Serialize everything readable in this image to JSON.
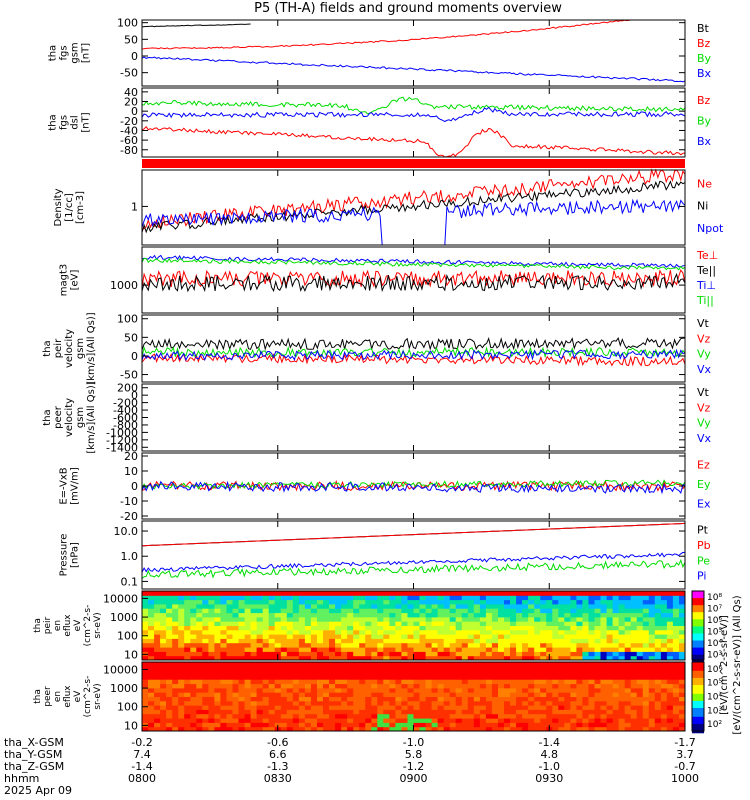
{
  "title": "P5 (TH-A) fields and ground moments overview",
  "colors": {
    "black": "#000000",
    "red": "#ff0000",
    "green": "#00dd00",
    "blue": "#0000ff"
  },
  "chart_data": {
    "type": "line",
    "title": "P5 (TH-A) fields and ground moments overview",
    "time_axis": {
      "xlim": [
        "08:00",
        "10:00"
      ],
      "ticks": [
        "0800",
        "0830",
        "0900",
        "0930",
        "1000"
      ],
      "major_ticks_min": [
        0,
        30,
        60,
        90,
        120
      ],
      "orbit_rows": [
        {
          "label": "tha_X-GSM",
          "values": [
            "-0.2",
            "-0.6",
            "-1.0",
            "-1.4",
            "-1.7"
          ]
        },
        {
          "label": "tha_Y-GSM",
          "values": [
            "7.4",
            "6.6",
            "5.8",
            "4.8",
            "3.7"
          ]
        },
        {
          "label": "tha_Z-GSM",
          "values": [
            "-1.4",
            "-1.3",
            "-1.2",
            "-1.0",
            "-0.7"
          ]
        },
        {
          "label": "hhmm",
          "values": [
            "0800",
            "0830",
            "0900",
            "0930",
            "1000"
          ]
        }
      ],
      "date_label": "2025 Apr 09"
    },
    "panels": [
      {
        "id": "fgs",
        "ylabel": [
          "tha",
          "fgs",
          "gsm",
          "[nT]"
        ],
        "scale": "linear",
        "ylim": [
          -90,
          108
        ],
        "ticks": [
          "100",
          "50",
          "0",
          "-50"
        ],
        "tick_values": [
          100,
          50,
          0,
          -50
        ],
        "series": [
          {
            "name": "Bt",
            "color": "black",
            "start": 88,
            "end": 125,
            "noise": 1,
            "hide_after": 0.2
          },
          {
            "name": "Bz",
            "color": "red",
            "start": 23,
            "end": 130,
            "noise": 2,
            "kind": "rising"
          },
          {
            "name": "By",
            "color": "green",
            "start": null,
            "end": null
          },
          {
            "name": "Bx",
            "color": "blue",
            "start": -4,
            "end": -75,
            "noise": 3
          }
        ]
      },
      {
        "id": "fgs-dsl",
        "ylabel": [
          "tha",
          "fgs",
          "dsl",
          "[nT]"
        ],
        "scale": "linear",
        "ylim": [
          -95,
          48
        ],
        "ticks": [
          "40",
          "20",
          "0",
          "-20",
          "-40",
          "-60",
          "-80"
        ],
        "tick_values": [
          40,
          20,
          0,
          -20,
          -40,
          -60,
          -80
        ],
        "series": [
          {
            "name": "Bz",
            "color": "red",
            "start": -35,
            "end": -88,
            "noise": 4,
            "bump": [
              0.6,
              30
            ]
          },
          {
            "name": "By",
            "color": "green",
            "start": 18,
            "end": 3,
            "noise": 5,
            "bump": [
              0.45,
              15
            ]
          },
          {
            "name": "Bx",
            "color": "blue",
            "start": -8,
            "end": -6,
            "noise": 5,
            "bump": [
              0.6,
              10
            ]
          }
        ]
      },
      {
        "id": "density",
        "ylabel": [
          "Density",
          "[1/cc]",
          "[cm-3]"
        ],
        "scale": "log",
        "ylim": [
          0.15,
          6
        ],
        "ticks": [
          "1"
        ],
        "tick_values": [
          1
        ],
        "series": [
          {
            "name": "Ne",
            "color": "red",
            "start": 0.45,
            "end": 5,
            "noise": 0.15
          },
          {
            "name": "Ni",
            "color": "black",
            "start": 0.35,
            "end": 3,
            "noise": 0.1
          },
          {
            "name": "Npot",
            "color": "blue",
            "start": 0.5,
            "end": 1.1,
            "noise": 0.15,
            "dip": [
              0.5,
              0.1
            ]
          }
        ]
      },
      {
        "id": "temp",
        "ylabel": [
          "magt3",
          "[eV]"
        ],
        "scale": "log",
        "ylim": [
          200,
          9000
        ],
        "ticks": [
          "1000"
        ],
        "tick_values": [
          1000
        ],
        "series": [
          {
            "name": "Te⊥",
            "color": "red",
            "start": 1400,
            "end": 1500,
            "noise": 0.2
          },
          {
            "name": "Te||",
            "color": "black",
            "start": 1100,
            "end": 1200,
            "noise": 0.2
          },
          {
            "name": "Ti⊥",
            "color": "blue",
            "start": 5000,
            "end": 3000,
            "noise": 0.05
          },
          {
            "name": "Ti||",
            "color": "green",
            "start": 4200,
            "end": 2600,
            "noise": 0.05
          }
        ]
      },
      {
        "id": "peir-vel",
        "ylabel": [
          "tha",
          "peir",
          "velocity",
          "gsm",
          "[km/s](All Qs)]"
        ],
        "scale": "linear",
        "ylim": [
          -70,
          110
        ],
        "ticks": [
          "100",
          "50",
          "0",
          "-50"
        ],
        "tick_values": [
          100,
          50,
          0,
          -50
        ],
        "series": [
          {
            "name": "Vt",
            "color": "black",
            "start": 30,
            "end": 35,
            "noise": 14
          },
          {
            "name": "Vz",
            "color": "red",
            "start": -5,
            "end": -15,
            "noise": 12
          },
          {
            "name": "Vy",
            "color": "green",
            "start": 10,
            "end": 10,
            "noise": 12
          },
          {
            "name": "Vx",
            "color": "blue",
            "start": 0,
            "end": 5,
            "noise": 12
          }
        ]
      },
      {
        "id": "peer-vel",
        "ylabel": [
          "tha",
          "peer",
          "velocity",
          "gsm",
          "[km/s](All Qs)]"
        ],
        "scale": "linear",
        "ylim": [
          -1500,
          300
        ],
        "ticks": [
          "200",
          "0",
          "-200",
          "-400",
          "-600",
          "-800",
          "-1000",
          "-1200",
          "-1400"
        ],
        "tick_values": [
          200,
          0,
          -200,
          -400,
          -600,
          -800,
          -1000,
          -1200,
          -1400
        ],
        "series": [
          {
            "name": "Vt",
            "color": "black",
            "start": null,
            "end": null
          },
          {
            "name": "Vz",
            "color": "red",
            "start": null,
            "end": null
          },
          {
            "name": "Vy",
            "color": "green",
            "start": null,
            "end": null
          },
          {
            "name": "Vx",
            "color": "blue",
            "start": null,
            "end": null
          }
        ]
      },
      {
        "id": "efield",
        "ylabel": [
          "E=-VxB",
          "[mV/m]"
        ],
        "scale": "linear",
        "ylim": [
          -22,
          22
        ],
        "ticks": [
          "20",
          "10",
          "0",
          "-10",
          "-20"
        ],
        "tick_values": [
          20,
          10,
          0,
          -10,
          -20
        ],
        "series": [
          {
            "name": "Ez",
            "color": "red",
            "start": 0,
            "end": 0,
            "noise": 3
          },
          {
            "name": "Ey",
            "color": "green",
            "start": 0,
            "end": 2,
            "noise": 2
          },
          {
            "name": "Ex",
            "color": "blue",
            "start": 0,
            "end": -2,
            "noise": 3
          }
        ]
      },
      {
        "id": "pressure",
        "ylabel": [
          "Pressure",
          "[nPa]"
        ],
        "scale": "log",
        "ylim": [
          0.05,
          25
        ],
        "ticks": [
          "10.0",
          "1.0",
          "0.1"
        ],
        "tick_values": [
          10,
          1,
          0.1
        ],
        "series": [
          {
            "name": "Pt",
            "color": "black",
            "start": 2.6,
            "end": 20,
            "noise": 0
          },
          {
            "name": "Pb",
            "color": "red",
            "start": 2.6,
            "end": 20,
            "noise": 0
          },
          {
            "name": "Pe",
            "color": "green",
            "start": 0.18,
            "end": 0.5,
            "noise": 0.15
          },
          {
            "name": "Pi",
            "color": "blue",
            "start": 0.28,
            "end": 1.2,
            "noise": 0.08
          }
        ]
      }
    ],
    "spectrograms": [
      {
        "id": "peir-flux",
        "ylabel": [
          "tha",
          "peir",
          "en",
          "eflux",
          "eV",
          "(cm^2-s-",
          "sr-eV)"
        ],
        "scale": "log",
        "ylim": [
          5,
          25000
        ],
        "ticks": [
          "10000",
          "1000",
          "100",
          "10"
        ],
        "tick_values": [
          10000,
          1000,
          100,
          10
        ],
        "type": "heatmap",
        "palette": "ion"
      },
      {
        "id": "peer-flux",
        "ylabel": [
          "tha",
          "peer",
          "en",
          "eflux",
          "eV",
          "(cm^2-s-",
          "sr-eV)"
        ],
        "scale": "log",
        "ylim": [
          5,
          25000
        ],
        "ticks": [
          "10000",
          "1000",
          "100",
          "10"
        ],
        "tick_values": [
          10000,
          1000,
          100,
          10
        ],
        "type": "heatmap",
        "palette": "electron"
      }
    ],
    "colorbars": [
      {
        "labels": [
          "10⁸",
          "10⁷",
          "10⁶",
          "10⁵",
          "10⁴",
          "10³"
        ]
      },
      {
        "labels": [
          "10⁶",
          "10⁵",
          "10⁴",
          "10³",
          "10²"
        ]
      }
    ],
    "colorbar_unit": "[eV/(cm^2-s-sr-eV)] (All Qs)",
    "colorbar_unit_line2": "[eV/(cm^2-s-sr-eV)]"
  }
}
